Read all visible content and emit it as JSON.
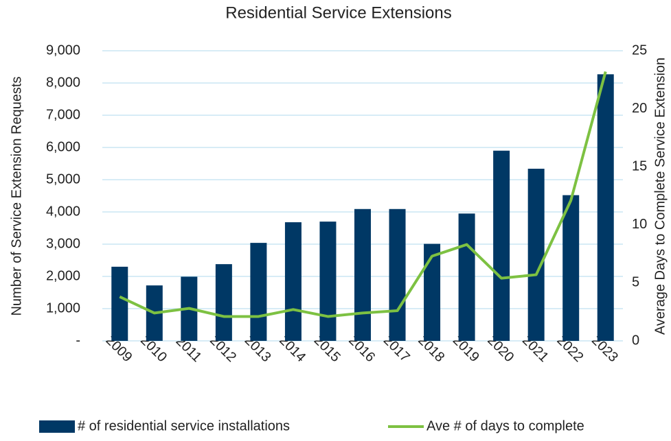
{
  "chart_data": {
    "type": "bar",
    "title": "Residential Service Extensions",
    "ylabel": "Number of Service Extension Requests",
    "y2label": "Average Days to Complete Service Extension",
    "categories": [
      "2009",
      "2010",
      "2011",
      "2012",
      "2013",
      "2014",
      "2015",
      "2016",
      "2017",
      "2018",
      "2019",
      "2020",
      "2021",
      "2022",
      "2023"
    ],
    "series": [
      {
        "name": "# of residential service installations",
        "type": "bar",
        "color": "#003865",
        "values": [
          2300,
          1720,
          1990,
          2380,
          3040,
          3680,
          3700,
          4090,
          4090,
          3010,
          3950,
          5900,
          5340,
          4520,
          8270
        ]
      },
      {
        "name": "Ave # of days to complete",
        "type": "line",
        "axis": "y2",
        "color": "#7dc142",
        "values": [
          3.8,
          2.4,
          2.8,
          2.1,
          2.1,
          2.7,
          2.1,
          2.4,
          2.6,
          7.3,
          8.3,
          5.4,
          5.7,
          12.1,
          23.2
        ]
      }
    ],
    "ylim": [
      0,
      9000
    ],
    "yticks": [
      {
        "value": 0,
        "label": "-"
      },
      {
        "value": 1000,
        "label": "1,000"
      },
      {
        "value": 2000,
        "label": "2,000"
      },
      {
        "value": 3000,
        "label": "3,000"
      },
      {
        "value": 4000,
        "label": "4,000"
      },
      {
        "value": 5000,
        "label": "5,000"
      },
      {
        "value": 6000,
        "label": "6,000"
      },
      {
        "value": 7000,
        "label": "7,000"
      },
      {
        "value": 8000,
        "label": "8,000"
      },
      {
        "value": 9000,
        "label": "9,000"
      }
    ],
    "y2lim": [
      0,
      25
    ],
    "y2ticks": [
      0,
      5,
      10,
      15,
      20,
      25
    ],
    "grid": true,
    "legend": "bottom"
  }
}
